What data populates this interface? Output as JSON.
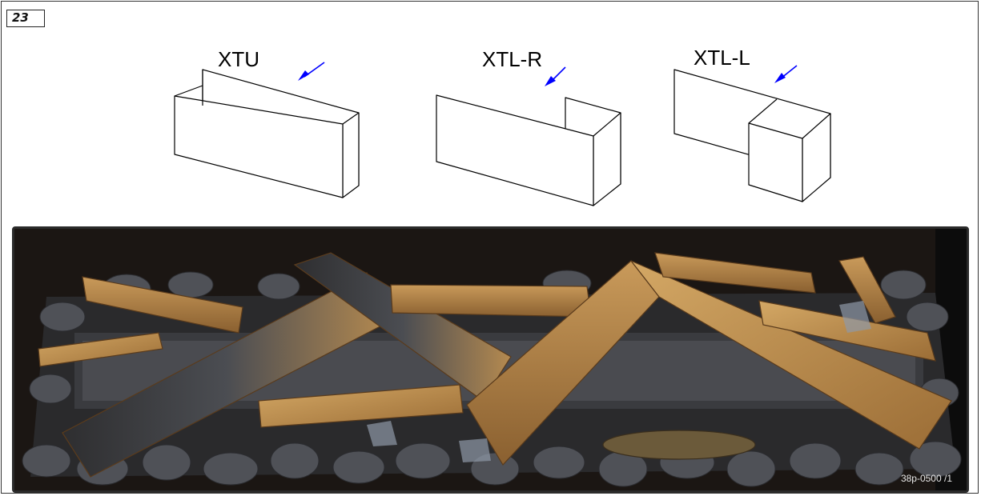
{
  "step_number": "23",
  "variants": [
    {
      "label": "XTU"
    },
    {
      "label": "XTL-R"
    },
    {
      "label": "XTL-L"
    }
  ],
  "photo": {
    "code": "38p-0500 /1"
  },
  "colors": {
    "arrow": "#0000ff",
    "outline": "#000000"
  }
}
